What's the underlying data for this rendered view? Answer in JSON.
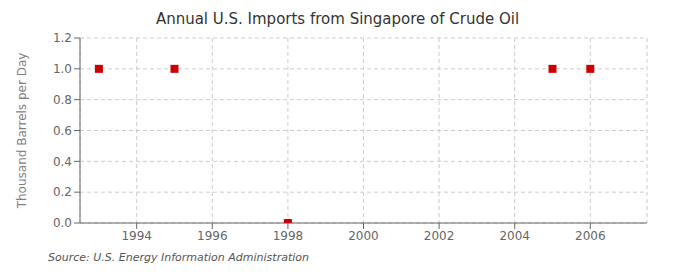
{
  "chart_data": {
    "type": "scatter",
    "title": "Annual U.S. Imports from Singapore of Crude Oil",
    "ylabel": "Thousand Barrels per Day",
    "source": "Source: U.S. Energy Information Administration",
    "x": [
      1993,
      1995,
      1998,
      2005,
      2006
    ],
    "values": [
      1.0,
      1.0,
      0.0,
      1.0,
      1.0
    ],
    "color": "#cc0000",
    "marker": "square",
    "xlim": [
      1992.5,
      2007.5
    ],
    "ylim": [
      0.0,
      1.2
    ],
    "xticks": [
      1994,
      1996,
      1998,
      2000,
      2002,
      2004,
      2006
    ],
    "yticks": [
      {
        "value": 0.0,
        "label": "0.0"
      },
      0.2,
      0.4,
      0.6,
      0.8,
      {
        "value": 1.0,
        "label": "1.0"
      },
      1.2
    ],
    "grid": true
  }
}
